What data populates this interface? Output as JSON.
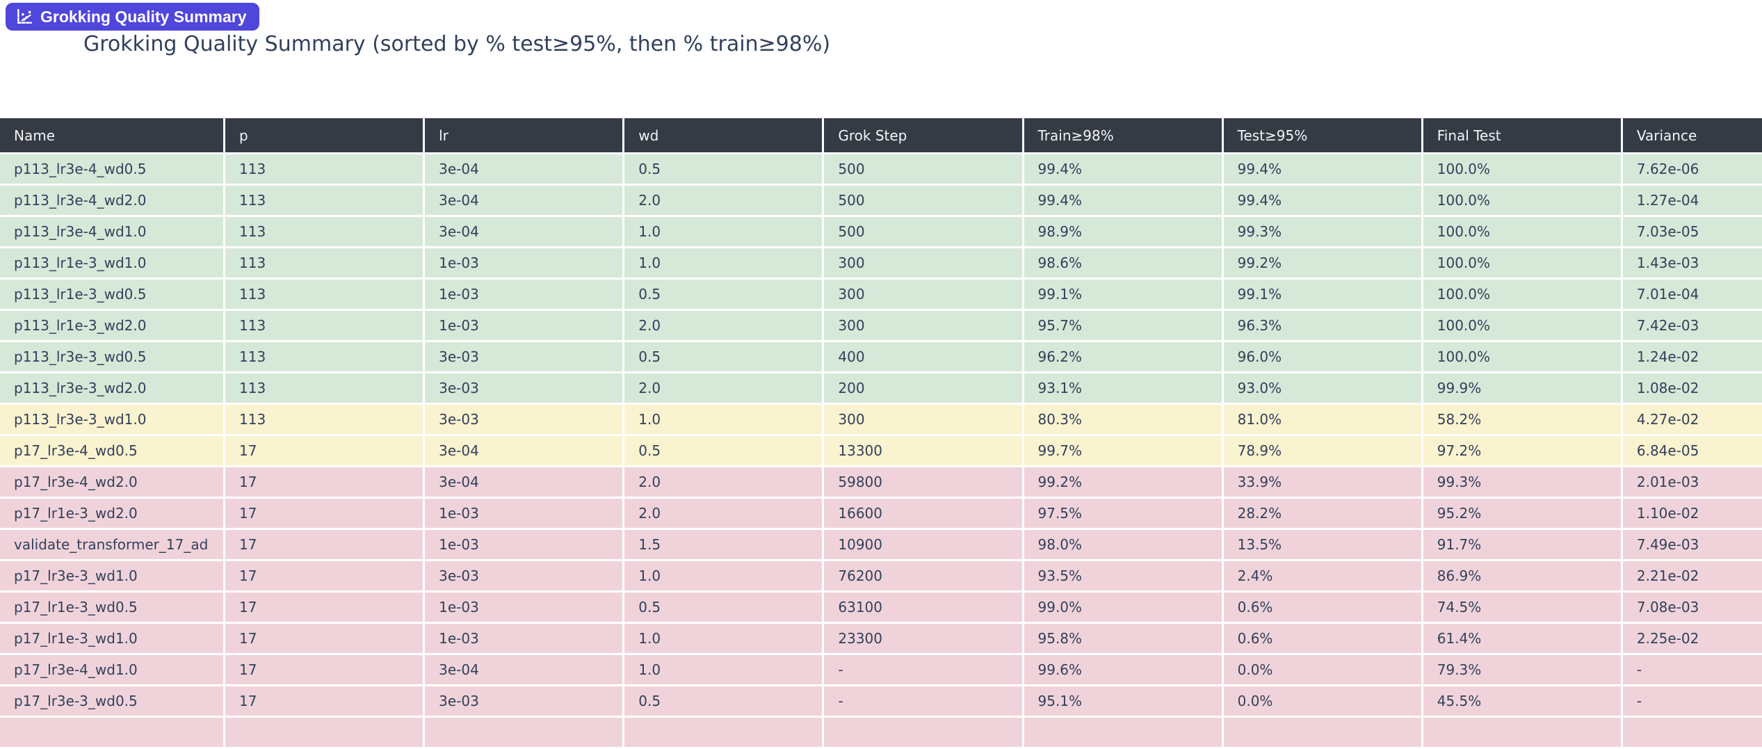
{
  "badge": {
    "label": "Grokking Quality Summary",
    "icon": "scatter-chart-icon",
    "background": "#4f46db",
    "text_color": "#ffffff"
  },
  "title": "Grokking Quality Summary (sorted by % test≥95%, then % train≥98%)",
  "table": {
    "columns": [
      "Name",
      "p",
      "lr",
      "wd",
      "Grok Step",
      "Train≥98%",
      "Test≥95%",
      "Final Test",
      "Variance"
    ],
    "header_bg": "#353b44",
    "header_text_color": "#f4f5f6",
    "cell_text_color": "#32405a",
    "status_colors": {
      "good": "#d6e8d8",
      "warn": "#faf3cf",
      "bad": "#f0d3da"
    },
    "rows": [
      {
        "status": "good",
        "cells": [
          "p113_lr3e-4_wd0.5",
          "113",
          "3e-04",
          "0.5",
          "500",
          "99.4%",
          "99.4%",
          "100.0%",
          "7.62e-06"
        ]
      },
      {
        "status": "good",
        "cells": [
          "p113_lr3e-4_wd2.0",
          "113",
          "3e-04",
          "2.0",
          "500",
          "99.4%",
          "99.4%",
          "100.0%",
          "1.27e-04"
        ]
      },
      {
        "status": "good",
        "cells": [
          "p113_lr3e-4_wd1.0",
          "113",
          "3e-04",
          "1.0",
          "500",
          "98.9%",
          "99.3%",
          "100.0%",
          "7.03e-05"
        ]
      },
      {
        "status": "good",
        "cells": [
          "p113_lr1e-3_wd1.0",
          "113",
          "1e-03",
          "1.0",
          "300",
          "98.6%",
          "99.2%",
          "100.0%",
          "1.43e-03"
        ]
      },
      {
        "status": "good",
        "cells": [
          "p113_lr1e-3_wd0.5",
          "113",
          "1e-03",
          "0.5",
          "300",
          "99.1%",
          "99.1%",
          "100.0%",
          "7.01e-04"
        ]
      },
      {
        "status": "good",
        "cells": [
          "p113_lr1e-3_wd2.0",
          "113",
          "1e-03",
          "2.0",
          "300",
          "95.7%",
          "96.3%",
          "100.0%",
          "7.42e-03"
        ]
      },
      {
        "status": "good",
        "cells": [
          "p113_lr3e-3_wd0.5",
          "113",
          "3e-03",
          "0.5",
          "400",
          "96.2%",
          "96.0%",
          "100.0%",
          "1.24e-02"
        ]
      },
      {
        "status": "good",
        "cells": [
          "p113_lr3e-3_wd2.0",
          "113",
          "3e-03",
          "2.0",
          "200",
          "93.1%",
          "93.0%",
          "99.9%",
          "1.08e-02"
        ]
      },
      {
        "status": "warn",
        "cells": [
          "p113_lr3e-3_wd1.0",
          "113",
          "3e-03",
          "1.0",
          "300",
          "80.3%",
          "81.0%",
          "58.2%",
          "4.27e-02"
        ]
      },
      {
        "status": "warn",
        "cells": [
          "p17_lr3e-4_wd0.5",
          "17",
          "3e-04",
          "0.5",
          "13300",
          "99.7%",
          "78.9%",
          "97.2%",
          "6.84e-05"
        ]
      },
      {
        "status": "bad",
        "cells": [
          "p17_lr3e-4_wd2.0",
          "17",
          "3e-04",
          "2.0",
          "59800",
          "99.2%",
          "33.9%",
          "99.3%",
          "2.01e-03"
        ]
      },
      {
        "status": "bad",
        "cells": [
          "p17_lr1e-3_wd2.0",
          "17",
          "1e-03",
          "2.0",
          "16600",
          "97.5%",
          "28.2%",
          "95.2%",
          "1.10e-02"
        ]
      },
      {
        "status": "bad",
        "cells": [
          "validate_transformer_17_ad",
          "17",
          "1e-03",
          "1.5",
          "10900",
          "98.0%",
          "13.5%",
          "91.7%",
          "7.49e-03"
        ]
      },
      {
        "status": "bad",
        "cells": [
          "p17_lr3e-3_wd1.0",
          "17",
          "3e-03",
          "1.0",
          "76200",
          "93.5%",
          "2.4%",
          "86.9%",
          "2.21e-02"
        ]
      },
      {
        "status": "bad",
        "cells": [
          "p17_lr1e-3_wd0.5",
          "17",
          "1e-03",
          "0.5",
          "63100",
          "99.0%",
          "0.6%",
          "74.5%",
          "7.08e-03"
        ]
      },
      {
        "status": "bad",
        "cells": [
          "p17_lr1e-3_wd1.0",
          "17",
          "1e-03",
          "1.0",
          "23300",
          "95.8%",
          "0.6%",
          "61.4%",
          "2.25e-02"
        ]
      },
      {
        "status": "bad",
        "cells": [
          "p17_lr3e-4_wd1.0",
          "17",
          "3e-04",
          "1.0",
          "-",
          "99.6%",
          "0.0%",
          "79.3%",
          "-"
        ]
      },
      {
        "status": "bad",
        "cells": [
          "p17_lr3e-3_wd0.5",
          "17",
          "3e-03",
          "0.5",
          "-",
          "95.1%",
          "0.0%",
          "45.5%",
          "-"
        ]
      },
      {
        "status": "bad",
        "cells": [
          "",
          "",
          "",
          "",
          "",
          "",
          "",
          "",
          ""
        ]
      }
    ]
  }
}
